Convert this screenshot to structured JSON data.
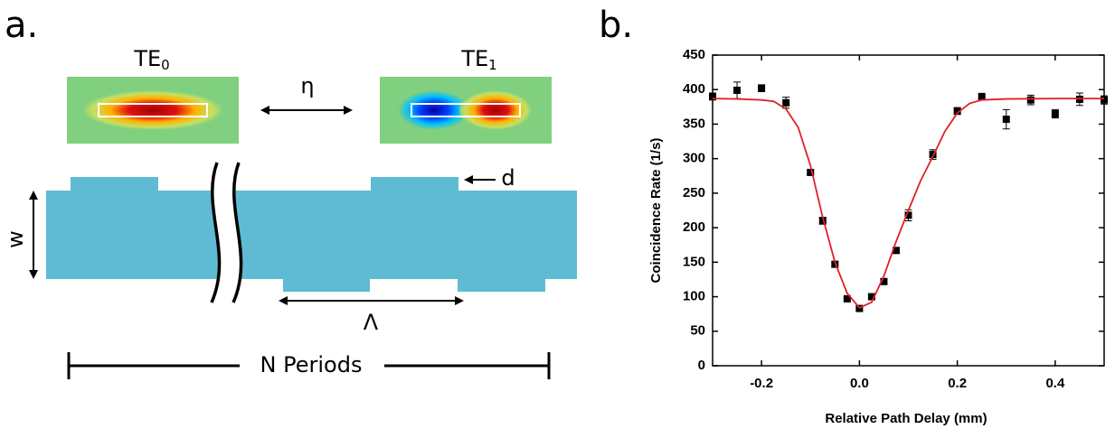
{
  "panel_a": {
    "label": "a.",
    "modes": [
      {
        "base": "TE",
        "sub": "0"
      },
      {
        "base": "TE",
        "sub": "1"
      }
    ],
    "coupling": "η",
    "depth": "d",
    "width": "w",
    "period": "Λ",
    "n_periods": "N Periods"
  },
  "panel_b_label": "b.",
  "chart_data": {
    "type": "scatter",
    "x_label": "Relative Path Delay (mm)",
    "y_label": "Coincidence Rate (1/s)",
    "xlim": [
      -0.3,
      0.5
    ],
    "ylim": [
      0,
      450
    ],
    "xticks": [
      -0.2,
      {
        "value": 0,
        "label": "0.0"
      },
      0.2,
      0.4
    ],
    "yticks": [
      0,
      50,
      100,
      150,
      200,
      250,
      300,
      350,
      400,
      450
    ],
    "series": [
      {
        "color": "#000000",
        "x": [
          -0.3,
          -0.25,
          -0.2,
          -0.15,
          -0.1,
          -0.075,
          -0.05,
          -0.025,
          0,
          0.025,
          0.05,
          0.075,
          0.1,
          0.15,
          0.2,
          0.25,
          0.3,
          0.35,
          0.4,
          0.45,
          0.5
        ],
        "values": [
          390,
          399,
          402,
          381,
          280,
          210,
          147,
          97,
          83,
          100,
          122,
          167,
          218,
          306,
          369,
          390,
          357,
          385,
          365,
          386,
          385
        ],
        "errors": [
          5,
          12,
          5,
          8,
          3,
          5,
          3,
          3,
          3,
          3,
          3,
          3,
          8,
          7,
          5,
          3,
          14,
          7,
          6,
          9,
          6
        ]
      },
      {
        "type": "line",
        "color": "#e0202a",
        "x": [
          -0.3,
          -0.25,
          -0.2,
          -0.175,
          -0.15,
          -0.125,
          -0.1,
          -0.075,
          -0.05,
          -0.025,
          0,
          0.025,
          0.05,
          0.075,
          0.1,
          0.125,
          0.15,
          0.175,
          0.2,
          0.225,
          0.25,
          0.3,
          0.4,
          0.5
        ],
        "values": [
          387,
          386.5,
          385,
          383,
          372,
          345,
          290,
          215,
          150,
          105,
          84,
          92,
          130,
          180,
          225,
          268,
          303,
          340,
          366,
          380,
          385,
          386.5,
          387,
          387
        ]
      }
    ]
  }
}
